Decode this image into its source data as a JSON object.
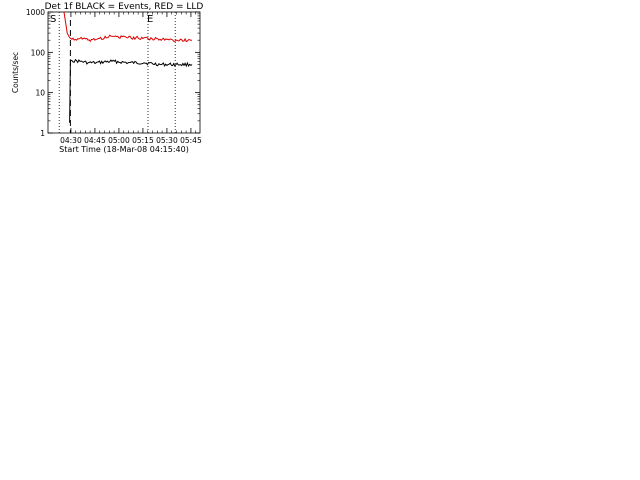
{
  "x_axis": {
    "label": "Start Time (18-Mar-08 04:15:40)",
    "ticks": [
      "04:30",
      "04:45",
      "05:00",
      "05:15",
      "05:30",
      "05:45"
    ]
  },
  "y_axis": {
    "label": "Counts/sec",
    "ticks": [
      "1000",
      "100",
      "10",
      "1"
    ]
  },
  "markers": {
    "start": "S",
    "end": "E"
  },
  "colors": {
    "events": "#000000",
    "lld": "#dd0000",
    "background": "#ffffff"
  },
  "chart_data": [
    {
      "type": "line",
      "title": "Det 1f BLACK = Events, RED = LLD",
      "x_unit": "minutes after 04:15:40",
      "y_scale": "log",
      "xlim": [
        0,
        95
      ],
      "ylim": [
        1,
        1000
      ],
      "series": [
        {
          "name": "BLACK = Events",
          "x": [
            13.5,
            14,
            15,
            20,
            25,
            30,
            40,
            50,
            60,
            70,
            80,
            90
          ],
          "y": [
            1.8,
            65,
            62,
            60,
            55,
            55,
            60,
            55,
            55,
            50,
            50,
            50
          ]
        },
        {
          "name": "RED = LLD",
          "x": [
            10,
            12,
            13.5,
            15,
            20,
            25,
            30,
            40,
            50,
            60,
            70,
            80,
            90
          ],
          "y": [
            1000,
            300,
            230,
            210,
            220,
            200,
            210,
            250,
            230,
            230,
            210,
            200,
            200
          ]
        }
      ],
      "dotted_lines_x": [
        7,
        62.5,
        79.5
      ],
      "dashed_line_x": 14
    }
  ]
}
